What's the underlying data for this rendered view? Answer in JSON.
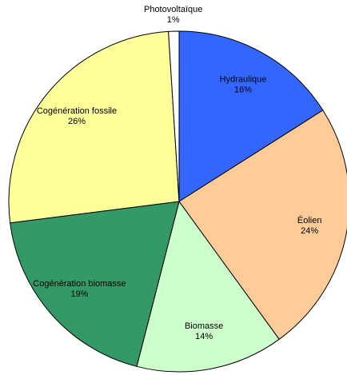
{
  "chart_data": {
    "type": "pie",
    "categories": [
      "Hydraulique",
      "Éolien",
      "Biomasse",
      "Cogénération biomasse",
      "Cogénération fossile",
      "Photovoltaïque"
    ],
    "values": [
      16,
      24,
      14,
      19,
      26,
      1
    ],
    "value_labels": [
      "16%",
      "24%",
      "14%",
      "19%",
      "26%",
      "1%"
    ],
    "colors": [
      "#3366ff",
      "#ffcc99",
      "#ccffcc",
      "#339966",
      "#ffff99",
      "#ffffff"
    ]
  }
}
